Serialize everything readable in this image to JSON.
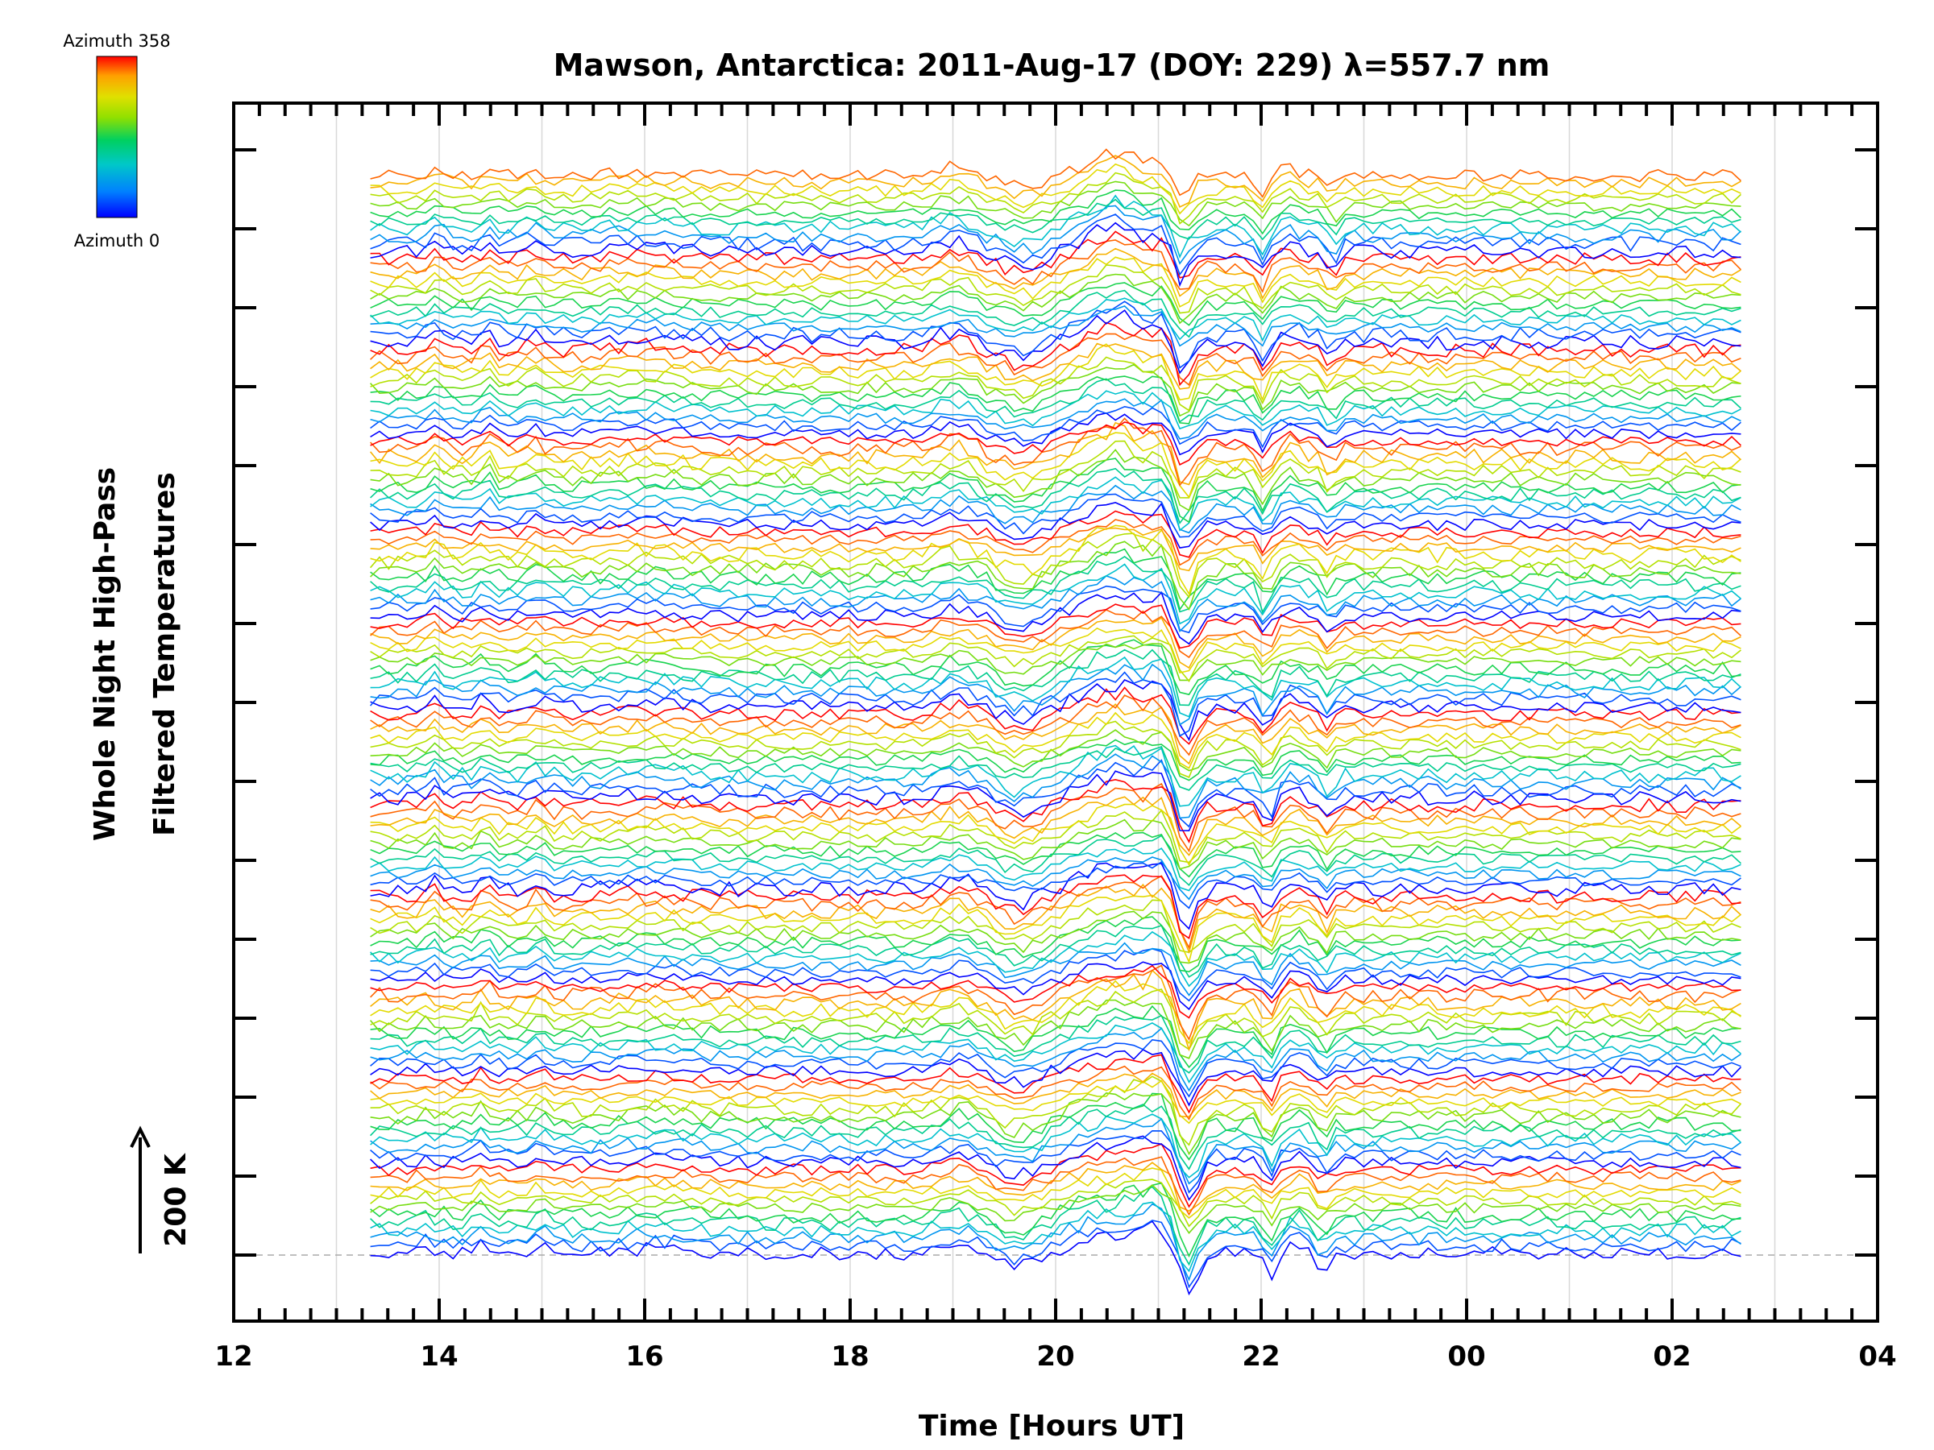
{
  "chart_data": {
    "type": "line",
    "title": "Mawson, Antarctica: 2011-Aug-17 (DOY: 229) λ=557.7 nm",
    "xlabel": "Time [Hours UT]",
    "ylabel_line1": "Whole Night High-Pass",
    "ylabel_line2": "Filtered Temperatures",
    "scale_label": "200 K",
    "legend": {
      "top_label": "Azimuth 358",
      "bottom_label": "Azimuth 0",
      "placement": "top-left"
    },
    "colormap": [
      "#0000ff",
      "#0080ff",
      "#00c8c8",
      "#00d060",
      "#90e000",
      "#e0e000",
      "#ffa000",
      "#ff0000"
    ],
    "x_ticks": [
      "12",
      "14",
      "16",
      "18",
      "20",
      "22",
      "00",
      "02",
      "04"
    ],
    "x_range_hours": [
      12,
      28
    ],
    "data_range_hours": [
      13.33,
      26.67
    ],
    "num_series": 143,
    "series_per_cycle": 12,
    "series_color_note": "series colored by azimuth, 0 (blue) to 358 (red)",
    "features": [
      {
        "t": 21.3,
        "amp": -1.0,
        "w": 0.13
      },
      {
        "t": 21.0,
        "amp": 0.55,
        "w": 0.16
      },
      {
        "t": 20.75,
        "amp": 0.4,
        "w": 0.25
      },
      {
        "t": 20.35,
        "amp": 0.35,
        "w": 0.35
      },
      {
        "t": 22.1,
        "amp": -0.55,
        "w": 0.08
      },
      {
        "t": 22.6,
        "amp": -0.4,
        "w": 0.07
      },
      {
        "t": 22.35,
        "amp": 0.2,
        "w": 0.12
      },
      {
        "t": 19.6,
        "amp": -0.35,
        "w": 0.3
      },
      {
        "t": 19.1,
        "amp": 0.25,
        "w": 0.25
      },
      {
        "t": 14.4,
        "amp": 0.25,
        "w": 0.08
      },
      {
        "t": 15.0,
        "amp": 0.2,
        "w": 0.1
      },
      {
        "t": 13.9,
        "amp": 0.15,
        "w": 0.12
      },
      {
        "t": 16.1,
        "amp": 0.12,
        "w": 0.4
      }
    ]
  }
}
